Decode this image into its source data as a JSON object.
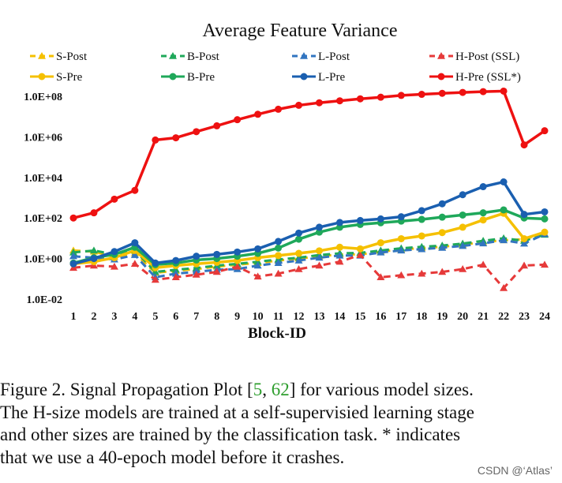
{
  "chart_data": {
    "type": "line",
    "title": "Average Feature Variance",
    "xlabel": "Block-ID",
    "ylabel": "",
    "yscale": "log",
    "ylim": [
      0.01,
      100000000
    ],
    "ytick_values": [
      0.01,
      1,
      100,
      10000,
      1000000,
      100000000
    ],
    "ytick_labels": [
      "1.0E-02",
      "1.0E+00",
      "1.0E+02",
      "1.0E+04",
      "1.0E+06",
      "1.0E+08"
    ],
    "x": [
      1,
      2,
      3,
      4,
      5,
      6,
      7,
      8,
      9,
      10,
      11,
      12,
      13,
      14,
      15,
      16,
      17,
      18,
      19,
      20,
      21,
      22,
      23,
      24
    ],
    "series": [
      {
        "name": "S-Post",
        "color": "#f5c000",
        "dashed": true,
        "marker": "triangle",
        "values": [
          2.5,
          2.2,
          1.2,
          1.8,
          0.2,
          0.25,
          0.3,
          0.4,
          0.5,
          0.6,
          0.8,
          1,
          1.3,
          1.6,
          1.6,
          2.2,
          2.8,
          3.3,
          3.8,
          4.8,
          6.5,
          8,
          9,
          17
        ]
      },
      {
        "name": "B-Post",
        "color": "#1fa85a",
        "dashed": true,
        "marker": "triangle",
        "values": [
          2.0,
          2.5,
          1.6,
          2.5,
          0.22,
          0.28,
          0.34,
          0.45,
          0.55,
          0.7,
          0.9,
          1.1,
          1.5,
          1.8,
          1.9,
          2.5,
          3.2,
          3.8,
          4.4,
          5.5,
          7.5,
          10,
          7.5,
          15
        ]
      },
      {
        "name": "L-Post",
        "color": "#3275c0",
        "dashed": true,
        "marker": "triangle",
        "values": [
          1.3,
          1.1,
          0.9,
          1.5,
          0.12,
          0.18,
          0.22,
          0.28,
          0.3,
          0.45,
          0.6,
          0.8,
          1.1,
          1.4,
          1.4,
          2.0,
          2.5,
          2.9,
          3.4,
          4.2,
          5.6,
          8,
          5.5,
          16
        ]
      },
      {
        "name": "H-Post (SSL)",
        "color": "#e63a3a",
        "dashed": true,
        "marker": "triangle",
        "values": [
          0.35,
          0.45,
          0.4,
          0.55,
          0.09,
          0.12,
          0.16,
          0.22,
          0.4,
          0.13,
          0.18,
          0.3,
          0.45,
          0.7,
          1.5,
          0.12,
          0.15,
          0.18,
          0.22,
          0.3,
          0.5,
          0.035,
          0.45,
          0.5
        ]
      },
      {
        "name": "S-Pre",
        "color": "#f5c000",
        "dashed": false,
        "marker": "circle",
        "values": [
          0.55,
          0.7,
          1.1,
          2.5,
          0.35,
          0.45,
          0.55,
          0.65,
          0.8,
          1.1,
          1.4,
          1.8,
          2.4,
          3.6,
          3.0,
          6.0,
          9.5,
          13,
          19,
          35,
          80,
          170,
          9.5,
          20
        ]
      },
      {
        "name": "B-Pre",
        "color": "#1fa85a",
        "dashed": false,
        "marker": "circle",
        "values": [
          0.6,
          1.1,
          1.6,
          3.6,
          0.5,
          0.6,
          0.85,
          1.0,
          1.3,
          1.8,
          3.3,
          9,
          20,
          35,
          48,
          58,
          70,
          85,
          110,
          140,
          180,
          250,
          100,
          90
        ]
      },
      {
        "name": "L-Pre",
        "color": "#1a5fb0",
        "dashed": false,
        "marker": "circle",
        "values": [
          0.55,
          1.0,
          2.2,
          6,
          0.6,
          0.8,
          1.3,
          1.6,
          2.1,
          3,
          7,
          18,
          35,
          60,
          75,
          90,
          115,
          230,
          500,
          1400,
          3500,
          6000,
          150,
          200
        ]
      },
      {
        "name": "H-Pre (SSL*)",
        "color": "#ee1111",
        "dashed": false,
        "marker": "circle",
        "values": [
          100,
          180,
          850,
          2300,
          700000,
          900000,
          1800000,
          3500000,
          7000000,
          13000000,
          23000000,
          36000000,
          48000000,
          60000000,
          75000000,
          90000000,
          110000000,
          125000000,
          140000000,
          155000000,
          170000000,
          180000000,
          400000,
          2000000
        ]
      }
    ],
    "legend": {
      "placement": "top",
      "columns": 4,
      "order": [
        "S-Post",
        "B-Post",
        "L-Post",
        "H-Post (SSL)",
        "S-Pre",
        "B-Pre",
        "L-Pre",
        "H-Pre (SSL*)"
      ]
    }
  },
  "caption": {
    "lines": [
      [
        "Figure 2. Signal Propagation Plot [",
        "5",
        ", ",
        "62",
        "] for various model sizes."
      ],
      [
        "The H-size models are trained at a self-supervisied learning stage"
      ],
      [
        "and other sizes are trained by the classification task. * indicates"
      ],
      [
        "that we use a 40-epoch model before it crashes."
      ]
    ]
  },
  "watermark": "CSDN @‘Atlas’"
}
